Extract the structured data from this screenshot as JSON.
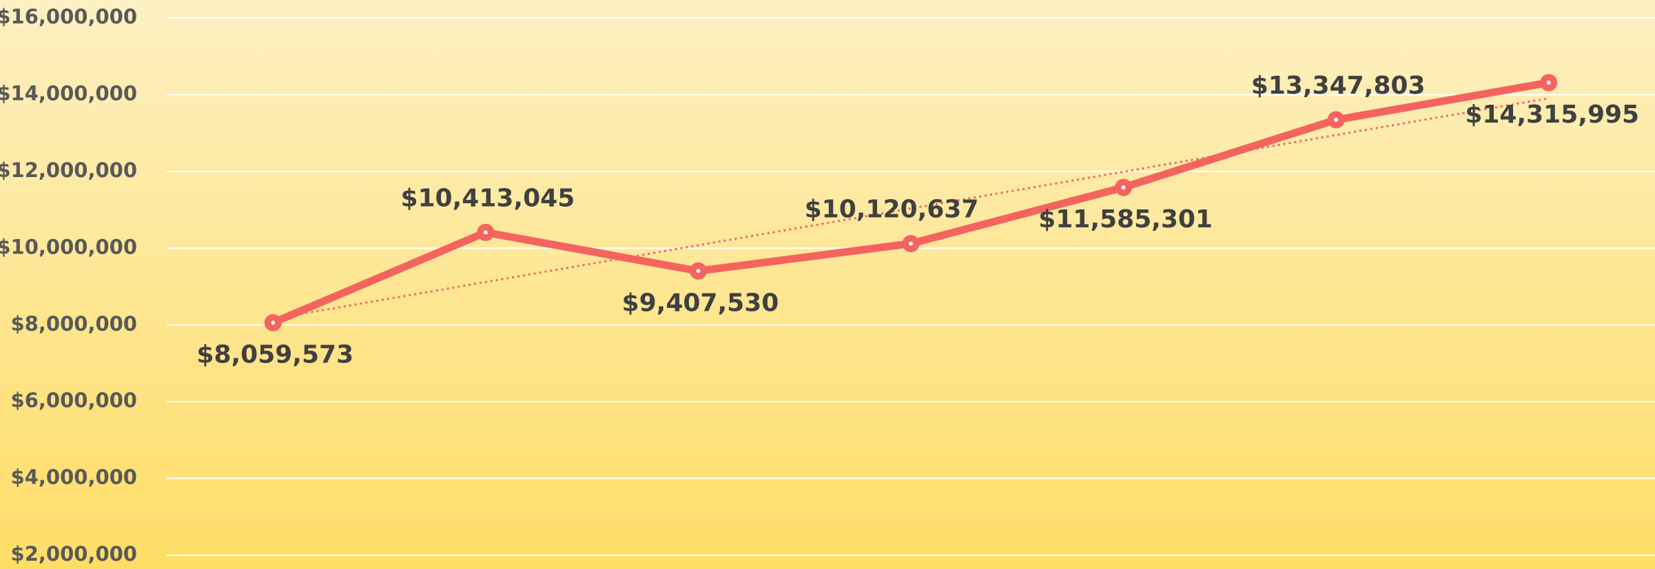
{
  "chart_data": {
    "type": "line",
    "categories": [
      null,
      null,
      null,
      null,
      null,
      null,
      null
    ],
    "series": [
      {
        "color": "#f4645f",
        "values": [
          8059573,
          10413045,
          9407530,
          10120637,
          11585301,
          13347803,
          14315995
        ],
        "value_labels": [
          "$8,059,573",
          "$10,413,045",
          "$9,407,530",
          "$10,120,637",
          "$11,585,301",
          "$13,347,803",
          "$14,315,995"
        ]
      }
    ],
    "ylim": [
      1640000,
      16470000
    ],
    "yticks": [
      {
        "value": 2000000,
        "label": "$2,000,000"
      },
      {
        "value": 4000000,
        "label": "$4,000,000"
      },
      {
        "value": 6000000,
        "label": "$6,000,000"
      },
      {
        "value": 8000000,
        "label": "$8,000,000"
      },
      {
        "value": 10000000,
        "label": "$10,000,000"
      },
      {
        "value": 12000000,
        "label": "$12,000,000"
      },
      {
        "value": 14000000,
        "label": "$14,000,000"
      },
      {
        "value": 16000000,
        "label": "$16,000,000"
      }
    ],
    "grid": true,
    "trendline": true
  }
}
